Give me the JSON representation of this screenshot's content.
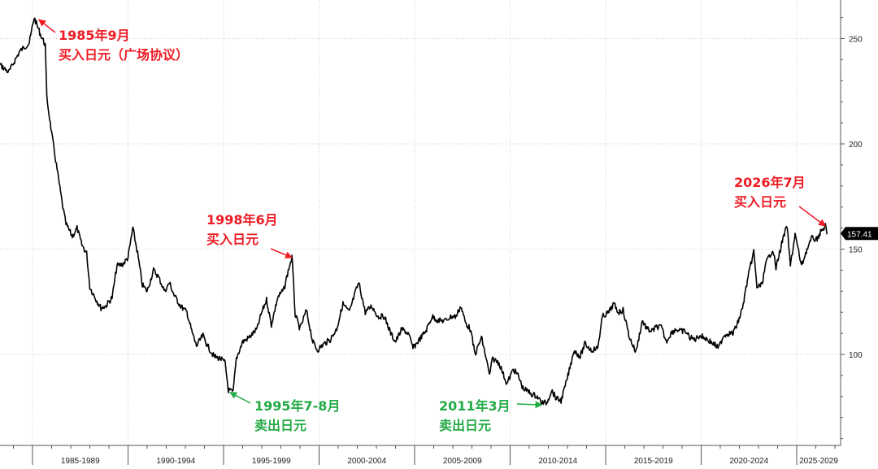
{
  "chart_data": {
    "type": "line",
    "title": "",
    "xlabel": "",
    "ylabel": "",
    "x_tick_labels": [
      "1985-1989",
      "1990-1994",
      "1995-1999",
      "2000-2004",
      "2005-2009",
      "2010-2014",
      "2015-2019",
      "2020-2024",
      "2025-2029"
    ],
    "y_ticks": [
      100,
      150,
      200,
      250
    ],
    "ylim": [
      55,
      268
    ],
    "grid": true,
    "last_value": "157.41",
    "series": [
      {
        "points": [
          [
            "1981-10",
            243
          ],
          [
            "1982-06",
            236
          ],
          [
            "1982-10",
            232
          ],
          [
            "1983-04",
            238
          ],
          [
            "1983-10",
            234
          ],
          [
            "1984-05",
            244
          ],
          [
            "1984-11",
            248
          ],
          [
            "1985-02",
            260
          ],
          [
            "1985-06",
            252
          ],
          [
            "1985-09",
            247
          ],
          [
            "1985-10",
            222
          ],
          [
            "1986-01",
            205
          ],
          [
            "1986-04",
            190
          ],
          [
            "1986-08",
            170
          ],
          [
            "1986-10",
            162
          ],
          [
            "1987-02",
            156
          ],
          [
            "1987-05",
            160
          ],
          [
            "1987-08",
            152
          ],
          [
            "1987-11",
            148
          ],
          [
            "1988-01",
            132
          ],
          [
            "1988-05",
            126
          ],
          [
            "1988-08",
            122
          ],
          [
            "1988-11",
            123
          ],
          [
            "1989-03",
            127
          ],
          [
            "1989-06",
            142
          ],
          [
            "1989-10",
            143
          ],
          [
            "1990-01",
            146
          ],
          [
            "1990-04",
            160
          ],
          [
            "1990-07",
            148
          ],
          [
            "1990-10",
            133
          ],
          [
            "1991-01",
            130
          ],
          [
            "1991-05",
            140
          ],
          [
            "1991-08",
            137
          ],
          [
            "1991-12",
            130
          ],
          [
            "1992-03",
            134
          ],
          [
            "1992-06",
            128
          ],
          [
            "1992-10",
            123
          ],
          [
            "1993-02",
            120
          ],
          [
            "1993-05",
            111
          ],
          [
            "1993-08",
            104
          ],
          [
            "1993-12",
            109
          ],
          [
            "1994-03",
            104
          ],
          [
            "1994-07",
            99
          ],
          [
            "1994-11",
            98
          ],
          [
            "1995-02",
            96
          ],
          [
            "1995-04",
            83
          ],
          [
            "1995-07",
            82
          ],
          [
            "1995-09",
            98
          ],
          [
            "1996-01",
            106
          ],
          [
            "1996-05",
            108
          ],
          [
            "1996-10",
            112
          ],
          [
            "1997-01",
            120
          ],
          [
            "1997-04",
            126
          ],
          [
            "1997-07",
            114
          ],
          [
            "1997-11",
            127
          ],
          [
            "1998-03",
            131
          ],
          [
            "1998-06",
            141
          ],
          [
            "1998-08",
            146
          ],
          [
            "1998-10",
            119
          ],
          [
            "1999-01",
            112
          ],
          [
            "1999-05",
            121
          ],
          [
            "1999-09",
            106
          ],
          [
            "1999-12",
            102
          ],
          [
            "2000-04",
            105
          ],
          [
            "2000-08",
            107
          ],
          [
            "2000-12",
            112
          ],
          [
            "2001-04",
            124
          ],
          [
            "2001-08",
            120
          ],
          [
            "2001-12",
            130
          ],
          [
            "2002-02",
            134
          ],
          [
            "2002-06",
            120
          ],
          [
            "2002-10",
            123
          ],
          [
            "2003-02",
            118
          ],
          [
            "2003-06",
            118
          ],
          [
            "2003-10",
            110
          ],
          [
            "2004-01",
            106
          ],
          [
            "2004-05",
            112
          ],
          [
            "2004-09",
            110
          ],
          [
            "2004-12",
            103
          ],
          [
            "2005-04",
            107
          ],
          [
            "2005-08",
            111
          ],
          [
            "2005-12",
            118
          ],
          [
            "2006-04",
            116
          ],
          [
            "2006-08",
            116
          ],
          [
            "2006-12",
            118
          ],
          [
            "2007-03",
            118
          ],
          [
            "2007-06",
            123
          ],
          [
            "2007-09",
            115
          ],
          [
            "2007-12",
            112
          ],
          [
            "2008-03",
            100
          ],
          [
            "2008-07",
            108
          ],
          [
            "2008-10",
            98
          ],
          [
            "2008-12",
            90
          ],
          [
            "2009-02",
            98
          ],
          [
            "2009-06",
            96
          ],
          [
            "2009-11",
            86
          ],
          [
            "2010-03",
            93
          ],
          [
            "2010-06",
            90
          ],
          [
            "2010-09",
            84
          ],
          [
            "2011-01",
            82
          ],
          [
            "2011-03",
            81
          ],
          [
            "2011-06",
            80
          ],
          [
            "2011-09",
            77
          ],
          [
            "2011-12",
            77
          ],
          [
            "2012-03",
            83
          ],
          [
            "2012-06",
            79
          ],
          [
            "2012-09",
            78
          ],
          [
            "2012-12",
            86
          ],
          [
            "2013-03",
            95
          ],
          [
            "2013-05",
            102
          ],
          [
            "2013-09",
            99
          ],
          [
            "2013-12",
            105
          ],
          [
            "2014-04",
            102
          ],
          [
            "2014-08",
            103
          ],
          [
            "2014-11",
            118
          ],
          [
            "2015-03",
            120
          ],
          [
            "2015-06",
            124
          ],
          [
            "2015-09",
            120
          ],
          [
            "2015-12",
            121
          ],
          [
            "2016-04",
            108
          ],
          [
            "2016-08",
            101
          ],
          [
            "2016-12",
            116
          ],
          [
            "2017-03",
            112
          ],
          [
            "2017-06",
            111
          ],
          [
            "2017-09",
            113
          ],
          [
            "2017-12",
            113
          ],
          [
            "2018-03",
            106
          ],
          [
            "2018-06",
            110
          ],
          [
            "2018-09",
            112
          ],
          [
            "2018-12",
            111
          ],
          [
            "2019-03",
            111
          ],
          [
            "2019-06",
            108
          ],
          [
            "2019-09",
            107
          ],
          [
            "2019-12",
            109
          ],
          [
            "2020-03",
            108
          ],
          [
            "2020-07",
            106
          ],
          [
            "2020-12",
            103
          ],
          [
            "2021-03",
            109
          ],
          [
            "2021-06",
            110
          ],
          [
            "2021-09",
            110
          ],
          [
            "2021-12",
            115
          ],
          [
            "2022-03",
            122
          ],
          [
            "2022-06",
            135
          ],
          [
            "2022-10",
            149
          ],
          [
            "2022-12",
            132
          ],
          [
            "2023-03",
            133
          ],
          [
            "2023-06",
            144
          ],
          [
            "2023-10",
            150
          ],
          [
            "2023-12",
            141
          ],
          [
            "2024-04",
            154
          ],
          [
            "2024-07",
            161
          ],
          [
            "2024-09",
            142
          ],
          [
            "2024-12",
            157
          ],
          [
            "2025-04",
            142
          ],
          [
            "2025-07",
            149
          ],
          [
            "2025-11",
            156
          ],
          [
            "2026-01",
            154
          ],
          [
            "2026-04",
            158
          ],
          [
            "2026-07",
            161
          ],
          [
            "2026-08",
            157
          ]
        ]
      }
    ],
    "annotations": [
      {
        "lines": [
          "1985年9月",
          "买入日元（广场协议）"
        ],
        "color": "red",
        "points_to": [
          "1985-05",
          259
        ]
      },
      {
        "lines": [
          "1998年6月",
          "买入日元"
        ],
        "color": "red",
        "points_to": [
          "1998-08",
          146
        ]
      },
      {
        "lines": [
          "1995年7-8月",
          "卖出日元"
        ],
        "color": "green",
        "points_to": [
          "1995-05",
          82
        ]
      },
      {
        "lines": [
          "2011年3月",
          "卖出日元"
        ],
        "color": "green",
        "points_to": [
          "2011-09",
          76
        ]
      },
      {
        "lines": [
          "2026年7月",
          "买入日元"
        ],
        "color": "red",
        "points_to": [
          "2026-07",
          161
        ]
      }
    ],
    "colors": {
      "line": "#000000",
      "red": "#ee1c25",
      "green": "#22aa44",
      "grid": "#cfcfcf",
      "axis": "#555555"
    }
  }
}
